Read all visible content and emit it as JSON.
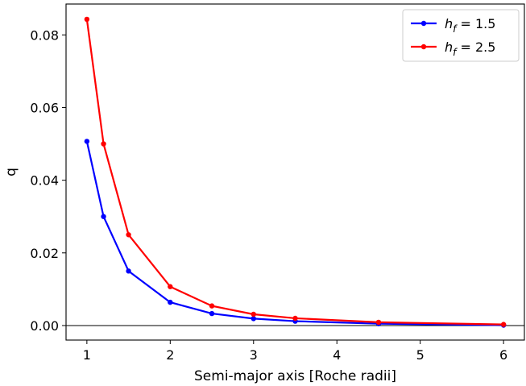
{
  "chart_data": {
    "type": "line",
    "xlabel": "Semi-major axis [Roche radii]",
    "ylabel": "q",
    "xlim": [
      0.75,
      6.25
    ],
    "ylim": [
      -0.004,
      0.0885
    ],
    "x_ticks": [
      1,
      2,
      3,
      4,
      5,
      6
    ],
    "x_tick_labels": [
      "1",
      "2",
      "3",
      "4",
      "5",
      "6"
    ],
    "y_ticks": [
      0.0,
      0.02,
      0.04,
      0.06,
      0.08
    ],
    "y_tick_labels": [
      "0.00",
      "0.02",
      "0.04",
      "0.06",
      "0.08"
    ],
    "grid": false,
    "reference_line_y": 0,
    "legend_position": "top-right",
    "series": [
      {
        "name_symbol": "h",
        "name_subscript": "f",
        "name_value": " = 1.5",
        "color": "#0000ff",
        "x": [
          1.0,
          1.2,
          1.5,
          2.0,
          2.5,
          3.0,
          3.5,
          4.5,
          6.0
        ],
        "y": [
          0.0507,
          0.03,
          0.015,
          0.0064,
          0.0033,
          0.0019,
          0.0012,
          0.0005,
          0.0001
        ]
      },
      {
        "name_symbol": "h",
        "name_subscript": "f",
        "name_value": " = 2.5",
        "color": "#ff0000",
        "x": [
          1.0,
          1.2,
          1.5,
          2.0,
          2.5,
          3.0,
          3.5,
          4.5,
          6.0
        ],
        "y": [
          0.0843,
          0.05,
          0.025,
          0.0107,
          0.0054,
          0.0031,
          0.002,
          0.0009,
          0.0003
        ]
      }
    ]
  }
}
